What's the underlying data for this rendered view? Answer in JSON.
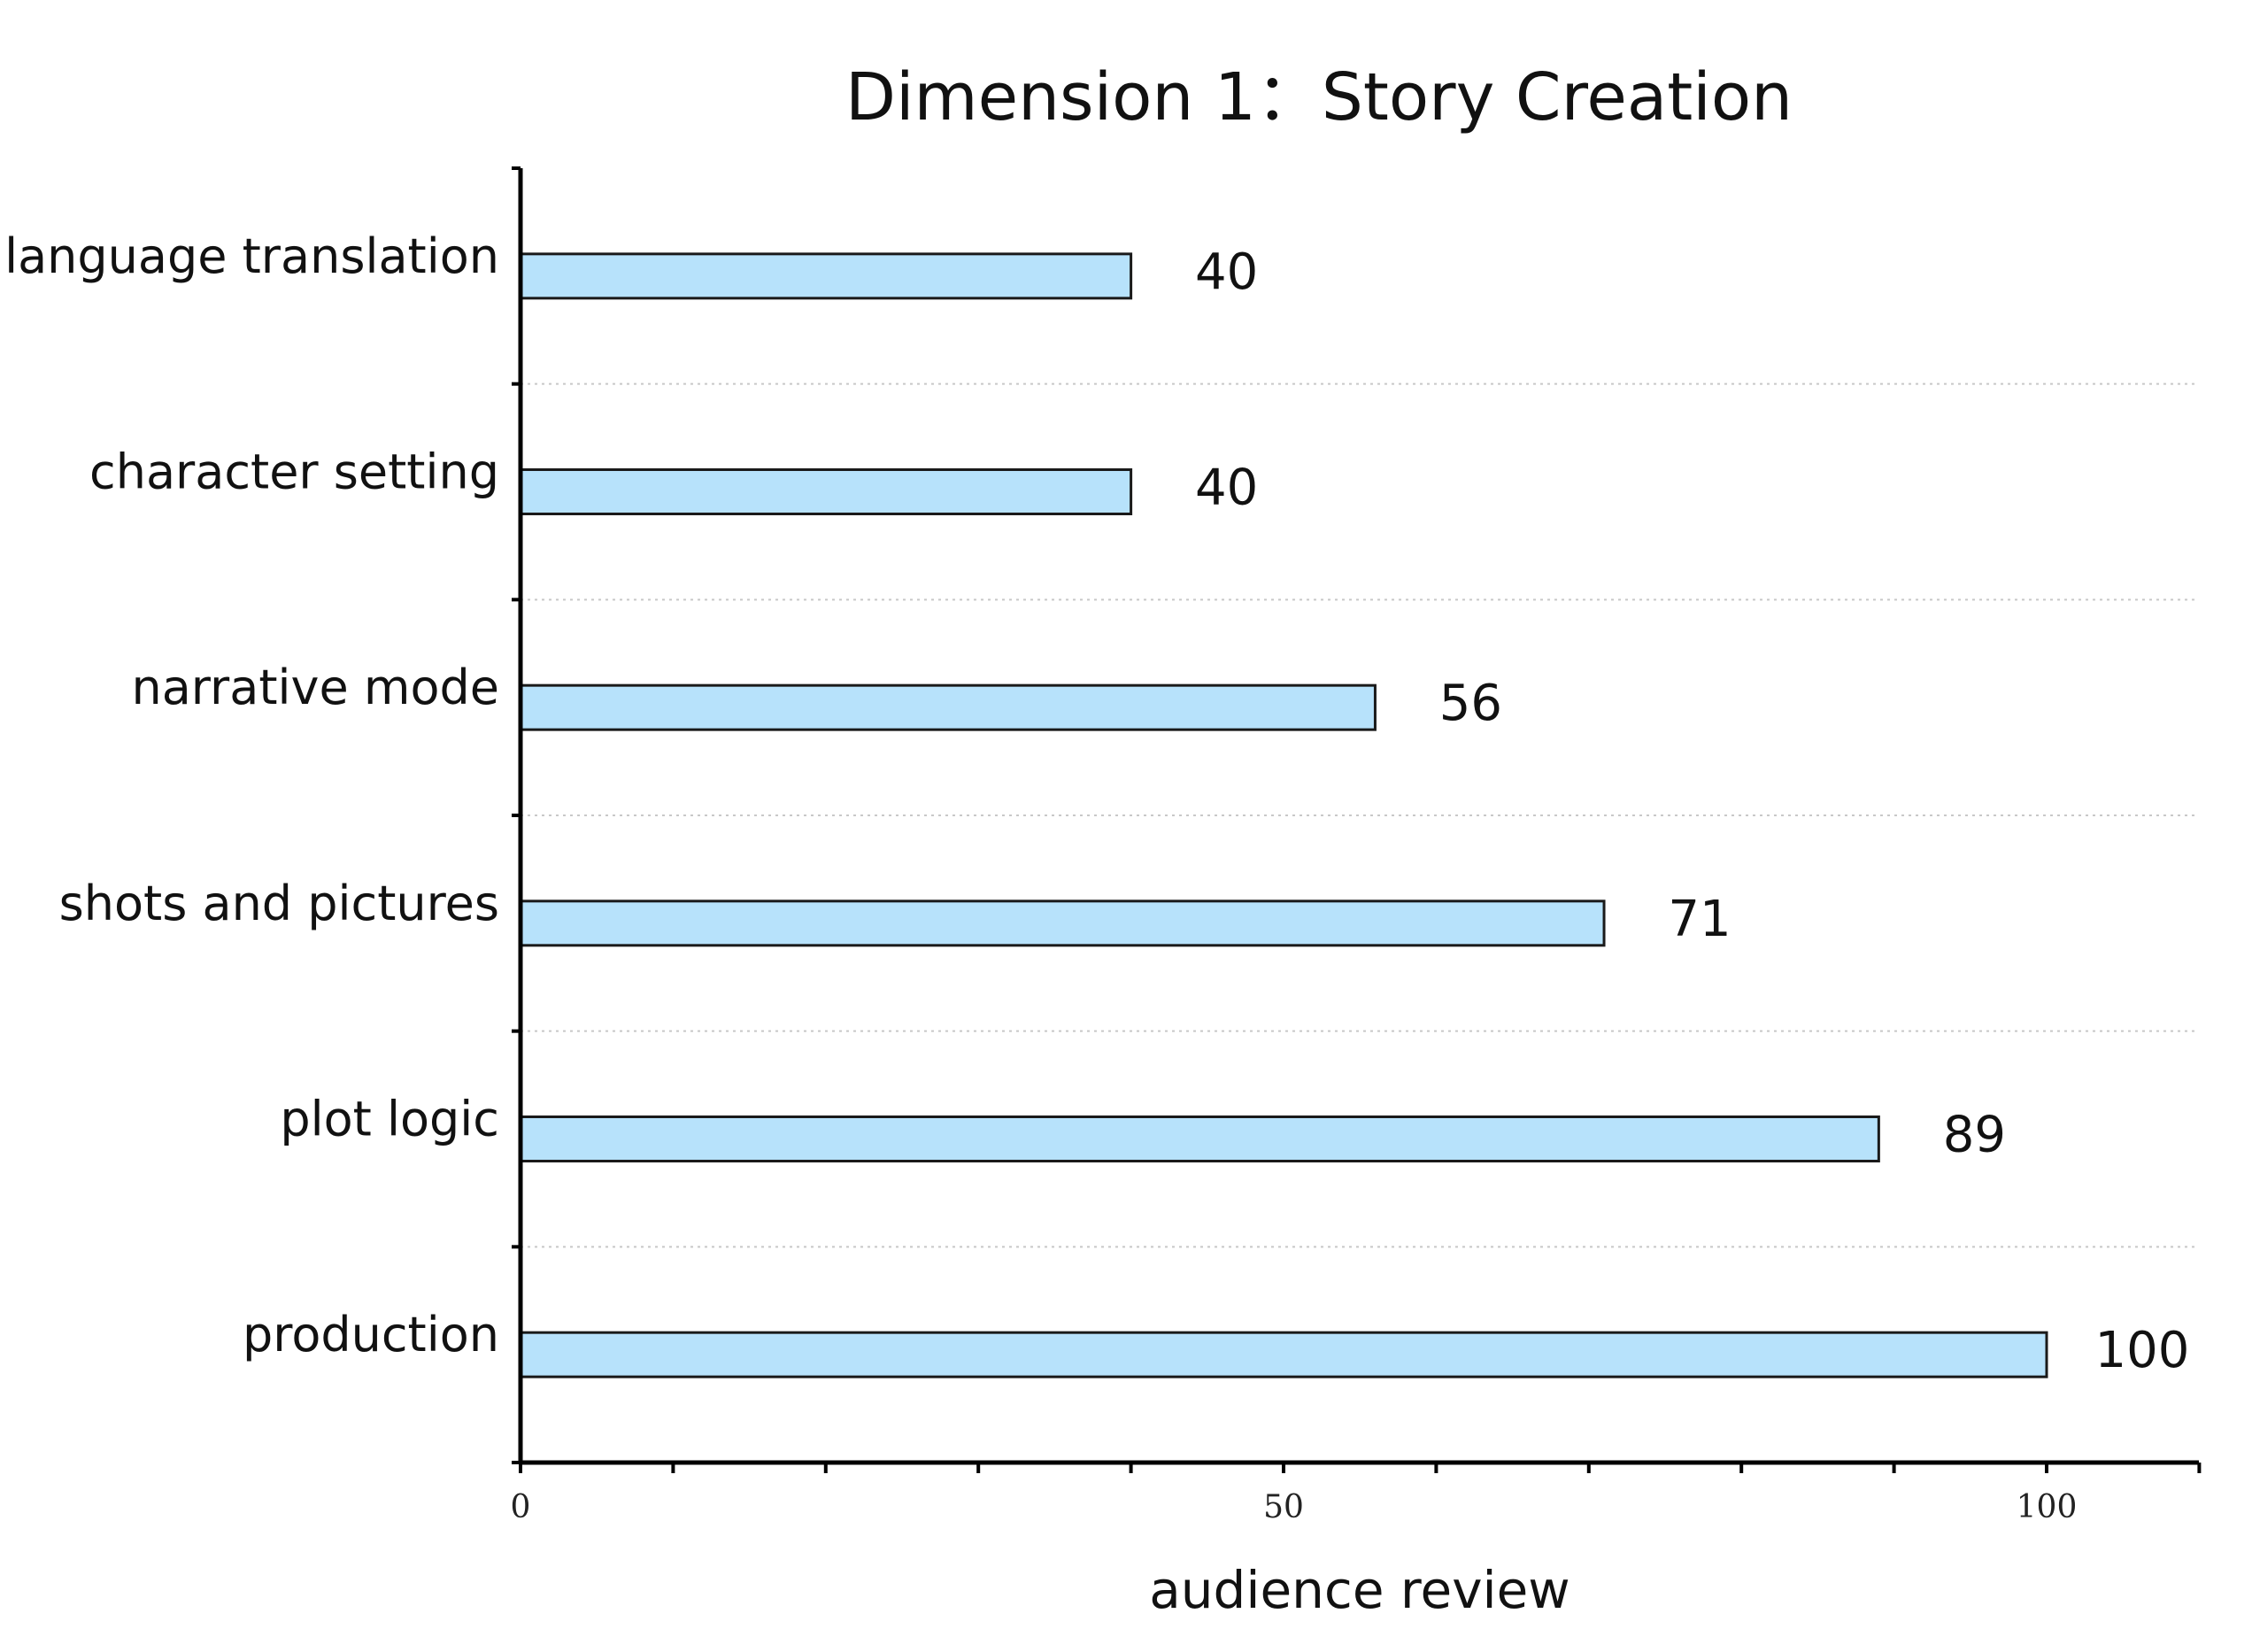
{
  "chart_data": {
    "type": "bar",
    "orientation": "horizontal",
    "title": "Dimension 1：Story Creation",
    "xlabel": "audience review",
    "ylabel": "",
    "categories": [
      "language translation",
      "character setting",
      "narrative mode",
      "shots and pictures",
      "plot logic",
      "production"
    ],
    "values": [
      40,
      40,
      56,
      71,
      89,
      100
    ],
    "xlim": [
      0,
      110
    ],
    "major_ticks": [
      0,
      50,
      100
    ],
    "minor_tick_step": 10,
    "data_labels": true,
    "grid": "horizontal-dotted",
    "legend": "none",
    "bar_color": "#b7e2fb",
    "bar_edge_color": "#1a1a1a"
  }
}
